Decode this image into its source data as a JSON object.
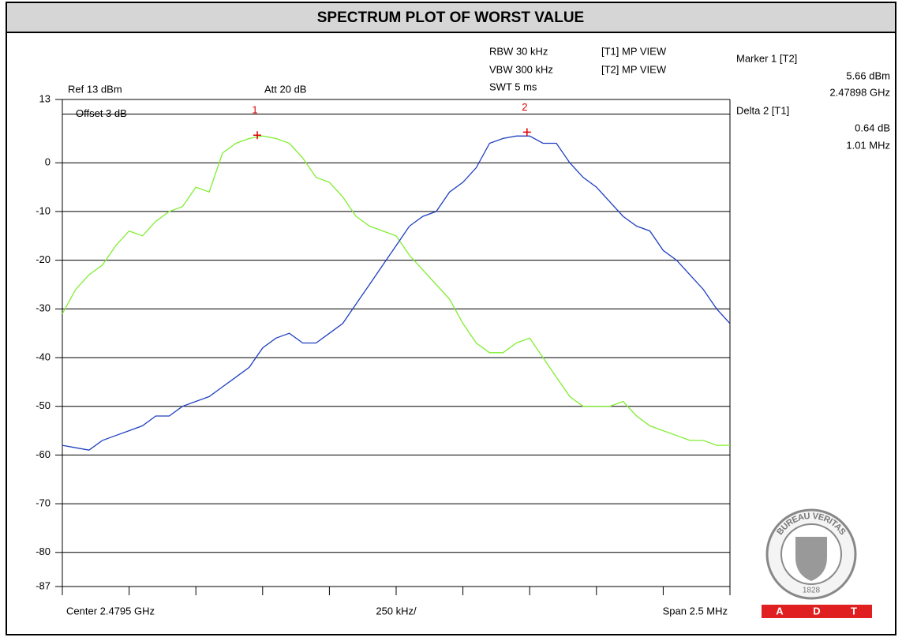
{
  "chart_data": {
    "type": "line",
    "title": "SPECTRUM PLOT OF WORST VALUE",
    "settings_text": [
      "Ref 13 dBm",
      "Att 20 dB",
      "RBW 30 kHz",
      "VBW 300 kHz",
      "SWT 5 ms"
    ],
    "ref_line": 10,
    "ref_line_label": "Offset 3 dB",
    "marker_readout": [
      "Marker 1 [T2]",
      "5.66 dBm",
      "2.47898 GHz",
      "Delta 2 [T1]",
      "0.64 dB",
      "1.01 MHz"
    ],
    "x_axis_labels": [
      "Center 2.4795 GHz",
      "250 kHz/",
      "Span 2.5 MHz"
    ],
    "logo": {
      "ring_text": "BUREAU VERITAS",
      "year": "1828",
      "letters": [
        "A",
        "D",
        "T"
      ]
    },
    "x": [
      2.47825,
      2.4783,
      2.47835,
      2.4784,
      2.47845,
      2.4785,
      2.47855,
      2.4786,
      2.47865,
      2.4787,
      2.47875,
      2.4788,
      2.47885,
      2.4789,
      2.47895,
      2.479,
      2.47905,
      2.4791,
      2.47915,
      2.4792,
      2.47925,
      2.4793,
      2.47935,
      2.4794,
      2.47945,
      2.4795,
      2.47955,
      2.4796,
      2.47965,
      2.4797,
      2.47975,
      2.4798,
      2.47985,
      2.4799,
      2.47995,
      2.48,
      2.48005,
      2.4801,
      2.48015,
      2.4802,
      2.48025,
      2.4803,
      2.48035,
      2.4804,
      2.48045,
      2.4805,
      2.48055,
      2.4806,
      2.48065,
      2.4807,
      2.48075
    ],
    "series": [
      {
        "name": "[T1] MP VIEW",
        "color": "#80ee30",
        "values": [
          -31,
          -26,
          -23,
          -21,
          -17,
          -14,
          -15,
          -12,
          -10,
          -9,
          -5,
          -6,
          2,
          4,
          5,
          5.5,
          5,
          4,
          1,
          -3,
          -4,
          -7,
          -11,
          -13,
          -14,
          -15,
          -19,
          -22,
          -25,
          -28,
          -33,
          -37,
          -39,
          -39,
          -37,
          -36,
          -40,
          -44,
          -48,
          -50,
          -50,
          -50,
          -49,
          -52,
          -54,
          -55,
          -56,
          -57,
          -57,
          -58,
          -58
        ]
      },
      {
        "name": "[T2] MP VIEW",
        "color": "#1f3fc0",
        "values": [
          -58,
          -58.5,
          -59,
          -57,
          -56,
          -55,
          -54,
          -52,
          -52,
          -50,
          -49,
          -48,
          -46,
          -44,
          -42,
          -38,
          -36,
          -35,
          -37,
          -37,
          -35,
          -33,
          -29,
          -25,
          -21,
          -17,
          -13,
          -11,
          -10,
          -6,
          -4,
          -1,
          4,
          5,
          5.5,
          5.5,
          4,
          4,
          0,
          -3,
          -5,
          -8,
          -11,
          -13,
          -14,
          -18,
          -20,
          -23,
          -26,
          -30,
          -33
        ]
      }
    ],
    "markers": [
      {
        "label": "1",
        "x": 2.47898,
        "y": 5.66
      },
      {
        "label": "2",
        "x": 2.47999,
        "y": 6.3
      }
    ],
    "marker_color": "#e00000",
    "xlim": [
      2.47825,
      2.48075
    ],
    "xticks": [
      2.47825,
      2.4785,
      2.47875,
      2.479,
      2.47925,
      2.4795,
      2.47975,
      2.48,
      2.48025,
      2.4805,
      2.48075
    ],
    "ylim": [
      -87,
      13
    ],
    "yticks": [
      13,
      0,
      -10,
      -20,
      -30,
      -40,
      -50,
      -60,
      -70,
      -80,
      -87
    ],
    "grid": true
  }
}
